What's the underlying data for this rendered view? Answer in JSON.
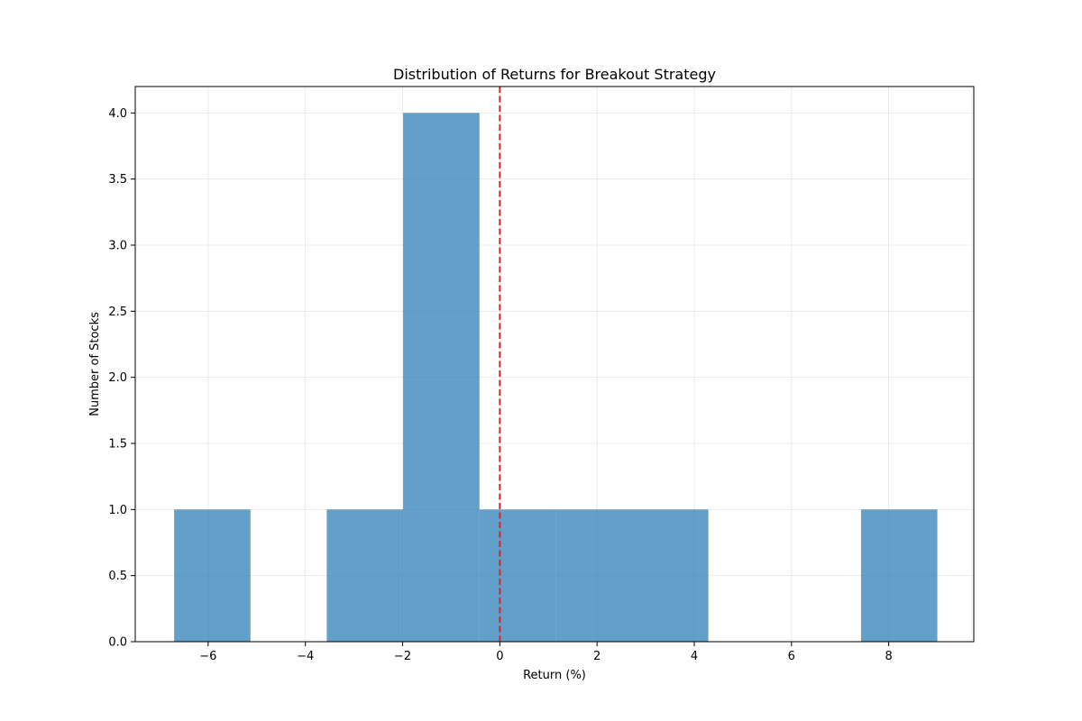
{
  "chart_data": {
    "type": "bar",
    "title": "Distribution of Returns for Breakout Strategy",
    "xlabel": "Return (%)",
    "ylabel": "Number of Stocks",
    "xlim": [
      -7.5,
      9.75
    ],
    "ylim": [
      0,
      4.2
    ],
    "bins": [
      {
        "x0": -6.7,
        "x1": -5.13,
        "count": 1
      },
      {
        "x0": -5.13,
        "x1": -3.56,
        "count": 0
      },
      {
        "x0": -3.56,
        "x1": -1.99,
        "count": 1
      },
      {
        "x0": -1.99,
        "x1": -0.42,
        "count": 4
      },
      {
        "x0": -0.42,
        "x1": 1.15,
        "count": 1
      },
      {
        "x0": 1.15,
        "x1": 2.72,
        "count": 1
      },
      {
        "x0": 2.72,
        "x1": 4.29,
        "count": 1
      },
      {
        "x0": 4.29,
        "x1": 5.86,
        "count": 0
      },
      {
        "x0": 5.86,
        "x1": 7.43,
        "count": 0
      },
      {
        "x0": 7.43,
        "x1": 9.0,
        "count": 1
      }
    ],
    "x_ticks": [
      {
        "value": -6,
        "label": "−6"
      },
      {
        "value": -4,
        "label": "−4"
      },
      {
        "value": -2,
        "label": "−2"
      },
      {
        "value": 0,
        "label": "0"
      },
      {
        "value": 2,
        "label": "2"
      },
      {
        "value": 4,
        "label": "4"
      },
      {
        "value": 6,
        "label": "6"
      },
      {
        "value": 8,
        "label": "8"
      }
    ],
    "y_ticks": [
      {
        "value": 0,
        "label": "0.0"
      },
      {
        "value": 0.5,
        "label": "0.5"
      },
      {
        "value": 1,
        "label": "1.0"
      },
      {
        "value": 1.5,
        "label": "1.5"
      },
      {
        "value": 2,
        "label": "2.0"
      },
      {
        "value": 2.5,
        "label": "2.5"
      },
      {
        "value": 3,
        "label": "3.0"
      },
      {
        "value": 3.5,
        "label": "3.5"
      },
      {
        "value": 4,
        "label": "4.0"
      }
    ],
    "reference_line": {
      "x": 0,
      "color": "#d62728",
      "style": "dashed"
    },
    "bar_color": "#1f77b4",
    "bar_opacity": 0.7,
    "grid": true
  }
}
